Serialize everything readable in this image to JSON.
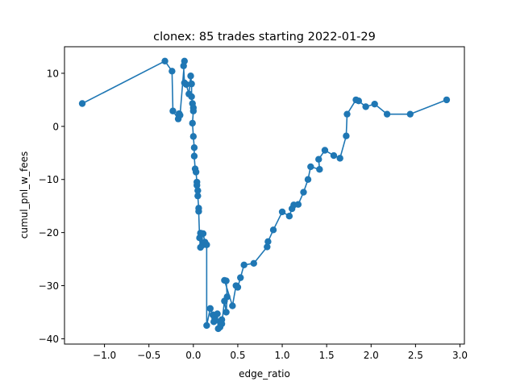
{
  "chart_data": {
    "type": "line",
    "title": "clonex: 85 trades starting 2022-01-29",
    "xlabel": "edge_ratio",
    "ylabel": "cumul_pnl_w_fees",
    "xlim": [
      -1.45,
      3.05
    ],
    "ylim": [
      -41,
      15
    ],
    "x_ticks": [
      -1.0,
      -0.5,
      0.0,
      0.5,
      1.0,
      1.5,
      2.0,
      2.5,
      3.0
    ],
    "x_tick_labels": [
      "−1.0",
      "−0.5",
      "0.0",
      "0.5",
      "1.0",
      "1.5",
      "2.0",
      "2.5",
      "3.0"
    ],
    "y_ticks": [
      -40,
      -30,
      -20,
      -10,
      0,
      10
    ],
    "y_tick_labels": [
      "−40",
      "−30",
      "−20",
      "−10",
      "0",
      "10"
    ],
    "grid": false,
    "legend": "none",
    "series": [
      {
        "color": "#1f77b4",
        "marker": "circle",
        "x": [
          -1.25,
          -0.32,
          -0.24,
          -0.23,
          -0.17,
          -0.16,
          -0.15,
          -0.1,
          -0.11,
          -0.1,
          -0.08,
          -0.05,
          -0.03,
          -0.02,
          -0.02,
          -0.01,
          0.0,
          0.0,
          -0.01,
          0.0,
          0.01,
          0.01,
          0.02,
          0.03,
          0.04,
          0.04,
          0.05,
          0.05,
          0.06,
          0.06,
          0.07,
          0.08,
          0.08,
          0.1,
          0.1,
          0.11,
          0.13,
          0.15,
          0.15,
          0.19,
          0.22,
          0.23,
          0.24,
          0.27,
          0.28,
          0.3,
          0.32,
          0.3,
          0.32,
          0.35,
          0.37,
          0.38,
          0.37,
          0.35,
          0.44,
          0.48,
          0.5,
          0.53,
          0.57,
          0.68,
          0.83,
          0.84,
          0.9,
          1.0,
          1.08,
          1.11,
          1.13,
          1.18,
          1.24,
          1.29,
          1.32,
          1.42,
          1.41,
          1.48,
          1.58,
          1.65,
          1.72,
          1.73,
          1.83,
          1.86,
          1.94,
          2.04,
          2.18,
          2.44,
          2.85
        ],
        "y": [
          4.3,
          12.3,
          10.4,
          2.9,
          1.4,
          2.4,
          2.1,
          12.3,
          11.4,
          8.2,
          7.9,
          6.1,
          9.5,
          8.0,
          5.6,
          4.3,
          3.5,
          2.9,
          0.6,
          -1.9,
          -4.0,
          -5.6,
          -8.0,
          -8.6,
          -10.5,
          -11.1,
          -12.1,
          -13.1,
          -15.4,
          -16.0,
          -21.0,
          -22.8,
          -20.1,
          -22.4,
          -20.2,
          -20.2,
          -21.8,
          -22.3,
          -37.5,
          -34.3,
          -35.5,
          -36.8,
          -36.1,
          -35.3,
          -38.1,
          -36.8,
          -36.4,
          -37.8,
          -37.2,
          -32.9,
          -35.0,
          -32.1,
          -29.1,
          -29.0,
          -33.8,
          -30.0,
          -30.3,
          -28.5,
          -26.1,
          -25.8,
          -22.7,
          -21.7,
          -19.5,
          -16.1,
          -16.9,
          -15.5,
          -14.8,
          -14.7,
          -12.4,
          -10.0,
          -7.6,
          -8.1,
          -6.2,
          -4.5,
          -5.5,
          -6.0,
          -1.8,
          2.3,
          5.0,
          4.8,
          3.7,
          4.2,
          2.3,
          2.3,
          5.0
        ]
      }
    ]
  }
}
